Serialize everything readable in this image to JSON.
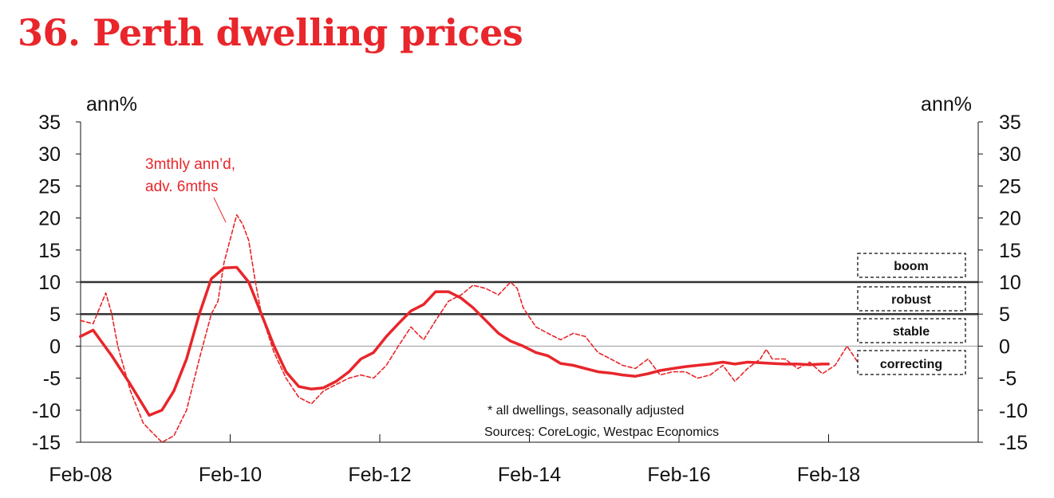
{
  "title": "36. Perth dwelling prices",
  "colors": {
    "accent": "#e8262b",
    "axis": "#111111",
    "grid": "#999999"
  },
  "chart_data": {
    "type": "line",
    "ylabel_left": "ann%",
    "ylabel_right": "ann%",
    "ylim": [
      -15,
      35
    ],
    "yticks": [
      "35",
      "30",
      "25",
      "20",
      "15",
      "10",
      "5",
      "0",
      "-5",
      "-10",
      "-15"
    ],
    "ytick_values": [
      35,
      30,
      25,
      20,
      15,
      10,
      5,
      0,
      -5,
      -10,
      -15
    ],
    "xlim": [
      2008.083,
      2020.083
    ],
    "xticks": [
      "Feb-08",
      "Feb-10",
      "Feb-12",
      "Feb-14",
      "Feb-16",
      "Feb-18"
    ],
    "xtick_values": [
      2008.083,
      2010.083,
      2012.083,
      2014.083,
      2016.083,
      2018.083
    ],
    "reference_lines": [
      10,
      5
    ],
    "series": [
      {
        "style": "solid",
        "x": [
          2008.08,
          2008.25,
          2008.5,
          2008.75,
          2009.0,
          2009.17,
          2009.33,
          2009.5,
          2009.67,
          2009.83,
          2010.0,
          2010.17,
          2010.33,
          2010.5,
          2010.67,
          2010.83,
          2011.0,
          2011.17,
          2011.33,
          2011.5,
          2011.67,
          2011.83,
          2012.0,
          2012.17,
          2012.33,
          2012.5,
          2012.67,
          2012.83,
          2013.0,
          2013.17,
          2013.33,
          2013.5,
          2013.67,
          2013.83,
          2014.0,
          2014.17,
          2014.33,
          2014.5,
          2014.67,
          2014.83,
          2015.0,
          2015.17,
          2015.33,
          2015.5,
          2015.67,
          2015.83,
          2016.0,
          2016.17,
          2016.33,
          2016.5,
          2016.67,
          2016.83,
          2017.0,
          2017.17,
          2017.33,
          2017.5,
          2017.67,
          2017.83,
          2018.0,
          2018.08
        ],
        "values": [
          1.5,
          2.5,
          -1.5,
          -6,
          -10.8,
          -10,
          -7,
          -2,
          5,
          10.5,
          12.2,
          12.3,
          10,
          5,
          0,
          -4,
          -6.3,
          -6.7,
          -6.5,
          -5.5,
          -4,
          -2,
          -1,
          1.5,
          3.5,
          5.5,
          6.5,
          8.5,
          8.5,
          7.5,
          6,
          4,
          2,
          0.8,
          0,
          -1,
          -1.5,
          -2.7,
          -3,
          -3.5,
          -4,
          -4.2,
          -4.5,
          -4.7,
          -4.3,
          -3.8,
          -3.5,
          -3.2,
          -3,
          -2.8,
          -2.5,
          -2.8,
          -2.5,
          -2.6,
          -2.7,
          -2.8,
          -2.8,
          -2.9,
          -2.8,
          -2.8
        ]
      },
      {
        "style": "dashed",
        "x": [
          2008.08,
          2008.25,
          2008.42,
          2008.5,
          2008.58,
          2008.75,
          2008.92,
          2009.0,
          2009.17,
          2009.33,
          2009.5,
          2009.67,
          2009.83,
          2009.92,
          2010.0,
          2010.17,
          2010.25,
          2010.33,
          2010.42,
          2010.5,
          2010.67,
          2010.83,
          2011.0,
          2011.17,
          2011.33,
          2011.5,
          2011.67,
          2011.83,
          2012.0,
          2012.17,
          2012.33,
          2012.5,
          2012.58,
          2012.67,
          2012.83,
          2013.0,
          2013.17,
          2013.33,
          2013.5,
          2013.67,
          2013.83,
          2013.92,
          2014.0,
          2014.17,
          2014.33,
          2014.5,
          2014.67,
          2014.83,
          2015.0,
          2015.17,
          2015.33,
          2015.5,
          2015.67,
          2015.83,
          2016.0,
          2016.17,
          2016.33,
          2016.5,
          2016.67,
          2016.83,
          2017.0,
          2017.17,
          2017.25,
          2017.33,
          2017.5,
          2017.67,
          2017.83,
          2018.0,
          2018.17,
          2018.33,
          2018.5
        ],
        "values": [
          4,
          3.5,
          8.3,
          5,
          0,
          -7,
          -12,
          -13,
          -15,
          -14,
          -10,
          -2,
          5,
          7,
          13,
          20.5,
          19,
          16.5,
          10,
          5,
          -1,
          -5,
          -8,
          -9,
          -7,
          -6,
          -5,
          -4.5,
          -5,
          -3,
          0,
          3,
          2,
          1,
          4,
          7,
          8,
          9.5,
          9,
          8,
          10,
          9,
          6,
          3,
          2,
          1,
          2,
          1.5,
          -1,
          -2,
          -3,
          -3.5,
          -2,
          -4.5,
          -4,
          -4,
          -5,
          -4.5,
          -3,
          -5.5,
          -3.5,
          -2,
          -0.5,
          -2,
          -2,
          -3.5,
          -2.5,
          -4.3,
          -3,
          0,
          -3
        ]
      }
    ],
    "annotation_lines": [
      "3mthly ann’d,",
      "adv. 6mths"
    ],
    "notes": [
      "* all dwellings, seasonally adjusted",
      "Sources: CoreLogic,  Westpac Economics"
    ],
    "regime_labels": [
      "boom",
      "robust",
      "stable",
      "correcting"
    ]
  }
}
